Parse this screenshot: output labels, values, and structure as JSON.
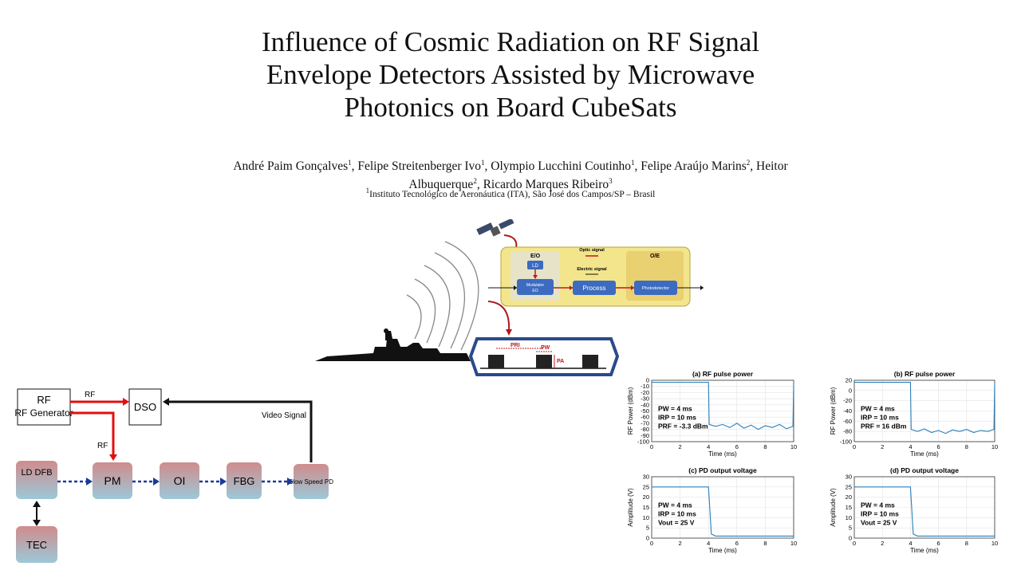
{
  "paper": {
    "title_lines": [
      "Influence of Cosmic Radiation on RF Signal",
      "Envelope Detectors Assisted by Microwave",
      "Photonics on Board CubeSats"
    ],
    "authors_line1": [
      {
        "name": "André Paim Gonçalves",
        "sup": "1"
      },
      {
        "name": "Felipe Streitenberger Ivo",
        "sup": "1"
      },
      {
        "name": "Olympio Lucchini Coutinho",
        "sup": "1"
      },
      {
        "name": "Felipe Araújo Marins",
        "sup": "2"
      }
    ],
    "authors_line1_tail": "Heitor",
    "authors_line2": [
      {
        "name": "Albuquerque",
        "sup": "2"
      },
      {
        "name": "Ricardo Marques Ribeiro",
        "sup": "3"
      }
    ],
    "affiliation_sup": "1",
    "affiliation": "Instituto Tecnológico de Aeronáutica (ITA), São José dos Campos/SP – Brasil"
  },
  "system_diagram": {
    "eo_label": "E/O",
    "oe_label": "O/E",
    "ld_label": "LD",
    "modulator_label": "Modulator",
    "modulator_sub": "EO",
    "optic_signal_label": "Optic signal",
    "electric_signal_label": "Electric signal",
    "process_label": "Process",
    "photodetector_label": "Photodetector",
    "pri_label": "PRI",
    "pw_label": "PW",
    "pa_label": "PA"
  },
  "block_diagram": {
    "rf_generator": "RF Generator",
    "dso": "DSO",
    "rf_label_1": "RF",
    "rf_label_2": "RF",
    "video_signal": "Video Signal",
    "ld_dfb": "LD DFB",
    "pm": "PM",
    "oi": "OI",
    "fbg": "FBG",
    "slow_speed_pd": "Slow Speed PD",
    "tec": "TEC"
  },
  "chart_data": [
    {
      "type": "line",
      "title": "(a) RF pulse power",
      "xlabel": "Time (ms)",
      "ylabel": "RF Power (dBm)",
      "xlim": [
        0,
        10
      ],
      "ylim": [
        -100,
        0
      ],
      "xticks": [
        0,
        2,
        4,
        6,
        8,
        10
      ],
      "yticks": [
        0,
        -10,
        -20,
        -30,
        -40,
        -50,
        -60,
        -70,
        -80,
        -90,
        -100
      ],
      "annotations": [
        "PW = 4 ms",
        "IRP = 10 ms",
        "PRF = -3.3 dBm"
      ],
      "series": [
        {
          "x": [
            0,
            4,
            4.05,
            4.5,
            5,
            5.5,
            6,
            6.5,
            7,
            7.5,
            8,
            8.5,
            9,
            9.5,
            9.95,
            10
          ],
          "y": [
            -3.3,
            -3.3,
            -72,
            -75,
            -72,
            -77,
            -70,
            -78,
            -73,
            -80,
            -74,
            -77,
            -72,
            -79,
            -75,
            -3.3
          ]
        }
      ]
    },
    {
      "type": "line",
      "title": "(b) RF pulse power",
      "xlabel": "Time (ms)",
      "ylabel": "RF Power (dBm)",
      "xlim": [
        0,
        10
      ],
      "ylim": [
        -100,
        20
      ],
      "xticks": [
        0,
        2,
        4,
        6,
        8,
        10
      ],
      "yticks": [
        20,
        0,
        -20,
        -40,
        -60,
        -80,
        -100
      ],
      "annotations": [
        "PW = 4 ms",
        "IRP = 10 ms",
        "PRF = 16 dBm"
      ],
      "series": [
        {
          "x": [
            0,
            4,
            4.05,
            4.5,
            5,
            5.5,
            6,
            6.5,
            7,
            7.5,
            8,
            8.5,
            9,
            9.5,
            9.95,
            10
          ],
          "y": [
            16,
            16,
            -76,
            -80,
            -75,
            -82,
            -78,
            -84,
            -77,
            -80,
            -76,
            -82,
            -78,
            -80,
            -76,
            16
          ]
        }
      ]
    },
    {
      "type": "line",
      "title": "(c) PD output voltage",
      "xlabel": "Time (ms)",
      "ylabel": "Amplitude (V)",
      "xlim": [
        0,
        10
      ],
      "ylim": [
        0,
        30
      ],
      "xticks": [
        0,
        2,
        4,
        6,
        8,
        10
      ],
      "yticks": [
        0,
        5,
        10,
        15,
        20,
        25,
        30
      ],
      "annotations": [
        "PW = 4 ms",
        "IRP = 10 ms",
        "Vout = 25 V"
      ],
      "series": [
        {
          "x": [
            0,
            4,
            4.2,
            4.5,
            5,
            10
          ],
          "y": [
            25,
            25,
            2,
            1,
            1,
            1
          ]
        }
      ]
    },
    {
      "type": "line",
      "title": "(d) PD output voltage",
      "xlabel": "Time (ms)",
      "ylabel": "Amplitude (V)",
      "xlim": [
        0,
        10
      ],
      "ylim": [
        0,
        30
      ],
      "xticks": [
        0,
        2,
        4,
        6,
        8,
        10
      ],
      "yticks": [
        0,
        5,
        10,
        15,
        20,
        25,
        30
      ],
      "annotations": [
        "PW = 4 ms",
        "IRP = 10 ms",
        "Vout = 25 V"
      ],
      "series": [
        {
          "x": [
            0,
            4,
            4.2,
            4.5,
            5,
            10
          ],
          "y": [
            25,
            25,
            2,
            1,
            1,
            1
          ]
        }
      ]
    }
  ]
}
